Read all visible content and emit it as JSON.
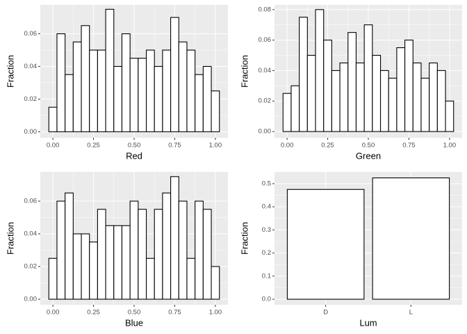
{
  "chart_data": [
    {
      "type": "histogram",
      "xlabel": "Red",
      "ylabel": "Fraction",
      "bins": [
        -0.025,
        0.025,
        0.075,
        0.125,
        0.175,
        0.225,
        0.275,
        0.325,
        0.375,
        0.425,
        0.475,
        0.525,
        0.575,
        0.625,
        0.675,
        0.725,
        0.775,
        0.825,
        0.875,
        0.925,
        0.975,
        1.025
      ],
      "values": [
        0.015,
        0.06,
        0.035,
        0.055,
        0.065,
        0.05,
        0.05,
        0.075,
        0.04,
        0.06,
        0.045,
        0.045,
        0.05,
        0.04,
        0.05,
        0.07,
        0.055,
        0.05,
        0.035,
        0.04,
        0.025
      ],
      "xlim": [
        -0.0775,
        1.0775
      ],
      "xticks": [
        {
          "value": 0,
          "label": "0.00"
        },
        {
          "value": 0.25,
          "label": "0.25"
        },
        {
          "value": 0.5,
          "label": "0.50"
        },
        {
          "value": 0.75,
          "label": "0.75"
        },
        {
          "value": 1,
          "label": "1.00"
        }
      ],
      "ylim": [
        -0.0037,
        0.0777
      ],
      "yticks": [
        {
          "value": 0,
          "label": "0.00"
        },
        {
          "value": 0.02,
          "label": "0.02"
        },
        {
          "value": 0.04,
          "label": "0.04"
        },
        {
          "value": 0.06,
          "label": "0.06"
        }
      ],
      "grid": true
    },
    {
      "type": "histogram",
      "xlabel": "Green",
      "ylabel": "Fraction",
      "bins": [
        -0.025,
        0.025,
        0.075,
        0.125,
        0.175,
        0.225,
        0.275,
        0.325,
        0.375,
        0.425,
        0.475,
        0.525,
        0.575,
        0.625,
        0.675,
        0.725,
        0.775,
        0.825,
        0.875,
        0.925,
        0.975,
        1.025
      ],
      "values": [
        0.025,
        0.03,
        0.075,
        0.05,
        0.08,
        0.06,
        0.04,
        0.045,
        0.065,
        0.045,
        0.07,
        0.05,
        0.04,
        0.035,
        0.055,
        0.06,
        0.045,
        0.035,
        0.045,
        0.04,
        0.02
      ],
      "xlim": [
        -0.0775,
        1.0775
      ],
      "xticks": [
        {
          "value": 0,
          "label": "0.00"
        },
        {
          "value": 0.25,
          "label": "0.25"
        },
        {
          "value": 0.5,
          "label": "0.50"
        },
        {
          "value": 0.75,
          "label": "0.75"
        },
        {
          "value": 1,
          "label": "1.00"
        }
      ],
      "ylim": [
        -0.0041,
        0.0831
      ],
      "yticks": [
        {
          "value": 0,
          "label": "0.00"
        },
        {
          "value": 0.02,
          "label": "0.02"
        },
        {
          "value": 0.04,
          "label": "0.04"
        },
        {
          "value": 0.06,
          "label": "0.06"
        },
        {
          "value": 0.08,
          "label": "0.08"
        }
      ],
      "grid": true
    },
    {
      "type": "histogram",
      "xlabel": "Blue",
      "ylabel": "Fraction",
      "bins": [
        -0.025,
        0.025,
        0.075,
        0.125,
        0.175,
        0.225,
        0.275,
        0.325,
        0.375,
        0.425,
        0.475,
        0.525,
        0.575,
        0.625,
        0.675,
        0.725,
        0.775,
        0.825,
        0.875,
        0.925,
        0.975,
        1.025
      ],
      "values": [
        0.025,
        0.06,
        0.065,
        0.04,
        0.04,
        0.035,
        0.055,
        0.045,
        0.045,
        0.045,
        0.06,
        0.055,
        0.025,
        0.055,
        0.065,
        0.075,
        0.06,
        0.025,
        0.06,
        0.055,
        0.02
      ],
      "xlim": [
        -0.0775,
        1.0775
      ],
      "xticks": [
        {
          "value": 0,
          "label": "0.00"
        },
        {
          "value": 0.25,
          "label": "0.25"
        },
        {
          "value": 0.5,
          "label": "0.50"
        },
        {
          "value": 0.75,
          "label": "0.75"
        },
        {
          "value": 1,
          "label": "1.00"
        }
      ],
      "ylim": [
        -0.0034,
        0.0779
      ],
      "yticks": [
        {
          "value": 0,
          "label": "0.00"
        },
        {
          "value": 0.02,
          "label": "0.02"
        },
        {
          "value": 0.04,
          "label": "0.04"
        },
        {
          "value": 0.06,
          "label": "0.06"
        }
      ],
      "grid": true
    },
    {
      "type": "bar",
      "xlabel": "Lum",
      "ylabel": "Fraction",
      "categories": [
        "D",
        "L"
      ],
      "values": [
        0.475,
        0.525
      ],
      "ylim": [
        -0.024,
        0.551
      ],
      "yticks": [
        {
          "value": 0,
          "label": "0.0"
        },
        {
          "value": 0.1,
          "label": "0.1"
        },
        {
          "value": 0.2,
          "label": "0.2"
        },
        {
          "value": 0.3,
          "label": "0.3"
        },
        {
          "value": 0.4,
          "label": "0.4"
        },
        {
          "value": 0.5,
          "label": "0.5"
        }
      ],
      "grid": true
    }
  ]
}
